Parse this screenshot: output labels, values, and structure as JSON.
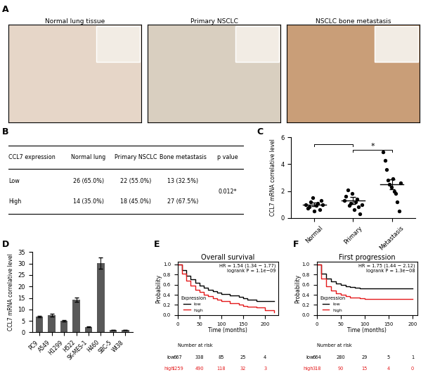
{
  "chart_data": [
    {
      "type": "image",
      "label": "A",
      "images": [
        {
          "title": "Normal lung tissue",
          "color": "#e6d6c8"
        },
        {
          "title": "Primary NSCLC",
          "color": "#d9cfc0"
        },
        {
          "title": "NSCLC bone metastasis",
          "color": "#c99e78"
        }
      ]
    },
    {
      "type": "table",
      "label": "B",
      "header": [
        "CCL7 expression",
        "Normal lung",
        "Primary NSCLC",
        "Bone metastasis",
        "p value"
      ],
      "rows": [
        [
          "Low",
          "26 (65.0%)",
          "22 (55.0%)",
          "13 (32.5%)"
        ],
        [
          "High",
          "14 (35.0%)",
          "18 (45.0%)",
          "27 (67.5%)"
        ]
      ],
      "p_value": "0.012*"
    },
    {
      "type": "scatter",
      "label": "C",
      "ylabel": "CCL7 mRNA correlative level",
      "categories": [
        "Normal",
        "Primary",
        "Metastasis"
      ],
      "values": [
        [
          1.0,
          0.7,
          0.8,
          1.2,
          1.5,
          0.5,
          0.9,
          1.1,
          0.6,
          1.3,
          1.0
        ],
        [
          1.3,
          1.6,
          2.1,
          0.9,
          1.1,
          1.8,
          0.6,
          1.2,
          1.4,
          0.8,
          0.3,
          1.0
        ],
        [
          4.9,
          4.3,
          3.6,
          2.8,
          2.5,
          2.3,
          2.9,
          2.0,
          1.8,
          1.2,
          0.5,
          2.6
        ]
      ],
      "mean": [
        1.0,
        1.3,
        2.5
      ],
      "sem": [
        0.15,
        0.25,
        0.35
      ],
      "color": "#000000",
      "marker": "o",
      "ylim": [
        0,
        6
      ],
      "yticks": [
        0,
        2,
        4,
        6
      ],
      "brackets": [
        {
          "categories": [
            "Normal",
            "Primary"
          ]
        },
        {
          "categories": [
            "Primary",
            "Metastasis"
          ],
          "label": "*"
        }
      ]
    },
    {
      "type": "bar",
      "label": "D",
      "ylabel": "CCL7 mRNA correlative level",
      "categories": [
        "PC9",
        "A549",
        "H1299",
        "H522",
        "SK-MES-1",
        "H460",
        "SBC-5",
        "WI38"
      ],
      "values": [
        6.8,
        7.5,
        5.1,
        14.3,
        2.4,
        30.3,
        1.0,
        1.0
      ],
      "errors": [
        0.3,
        0.5,
        0.3,
        1.0,
        0.2,
        2.5,
        0.1,
        0.1
      ],
      "color": "#595959",
      "ylim": [
        0,
        35
      ],
      "yticks": [
        0,
        5,
        10,
        15,
        20,
        25,
        30,
        35
      ]
    },
    {
      "type": "line",
      "label": "E",
      "title": "Overall survival",
      "annotations": [
        "HR = 1.54 (1.34 − 1.77)",
        "logrank P = 1.1e−09"
      ],
      "xlabel": "Time (months)",
      "ylabel": "Probability",
      "x": [
        0,
        10,
        20,
        30,
        40,
        50,
        60,
        70,
        80,
        90,
        100,
        120,
        140,
        150,
        160,
        180,
        200,
        220
      ],
      "series": [
        {
          "name": "low",
          "color": "#000000",
          "values": [
            1.0,
            0.88,
            0.78,
            0.7,
            0.63,
            0.58,
            0.54,
            0.5,
            0.47,
            0.44,
            0.42,
            0.38,
            0.36,
            0.33,
            0.3,
            0.28,
            0.28,
            null
          ],
          "at_risk": [
            667,
            338,
            85,
            25,
            4
          ]
        },
        {
          "name": "high",
          "color": "#e41a1c",
          "values": [
            1.0,
            0.82,
            0.68,
            0.58,
            0.5,
            0.45,
            0.4,
            0.37,
            0.33,
            0.31,
            0.28,
            0.24,
            0.2,
            0.18,
            0.16,
            0.15,
            0.1,
            0.05
          ],
          "at_risk": [
            1259,
            490,
            118,
            32,
            3
          ]
        }
      ],
      "legend": "lower left",
      "legend_title": "Expression",
      "risk_table_title": "Number at risk",
      "xlim": [
        0,
        230
      ],
      "xticks": [
        0,
        50,
        100,
        150,
        200
      ],
      "ylim": [
        0,
        1.05
      ],
      "yticks": [
        0.0,
        0.2,
        0.4,
        0.6,
        0.8,
        1.0
      ],
      "line_style": "steps"
    },
    {
      "type": "line",
      "label": "F",
      "title": "First progression",
      "annotations": [
        "HR = 1.75 (1.44 − 2.12)",
        "logrank P = 1.3e−08"
      ],
      "xlabel": "Time (months)",
      "ylabel": "Probability",
      "x": [
        0,
        10,
        20,
        30,
        40,
        50,
        60,
        70,
        80,
        90,
        100,
        120,
        140,
        160,
        200
      ],
      "series": [
        {
          "name": "low",
          "color": "#000000",
          "values": [
            1.0,
            0.82,
            0.72,
            0.66,
            0.62,
            0.59,
            0.57,
            0.55,
            0.54,
            0.53,
            0.52,
            0.52,
            0.52,
            0.52,
            0.52
          ],
          "at_risk": [
            664,
            280,
            29,
            5,
            1
          ]
        },
        {
          "name": "high",
          "color": "#e41a1c",
          "values": [
            1.0,
            0.72,
            0.56,
            0.48,
            0.43,
            0.4,
            0.37,
            0.35,
            0.34,
            0.33,
            0.32,
            0.32,
            0.32,
            0.32,
            null
          ],
          "at_risk": [
            318,
            90,
            15,
            4,
            0
          ]
        }
      ],
      "legend": "lower left",
      "legend_title": "Expression",
      "risk_table_title": "Number at risk",
      "xlim": [
        0,
        210
      ],
      "xticks": [
        0,
        50,
        100,
        150,
        200
      ],
      "ylim": [
        0,
        1.05
      ],
      "yticks": [
        0.0,
        0.2,
        0.4,
        0.6,
        0.8,
        1.0
      ],
      "line_style": "steps"
    }
  ]
}
